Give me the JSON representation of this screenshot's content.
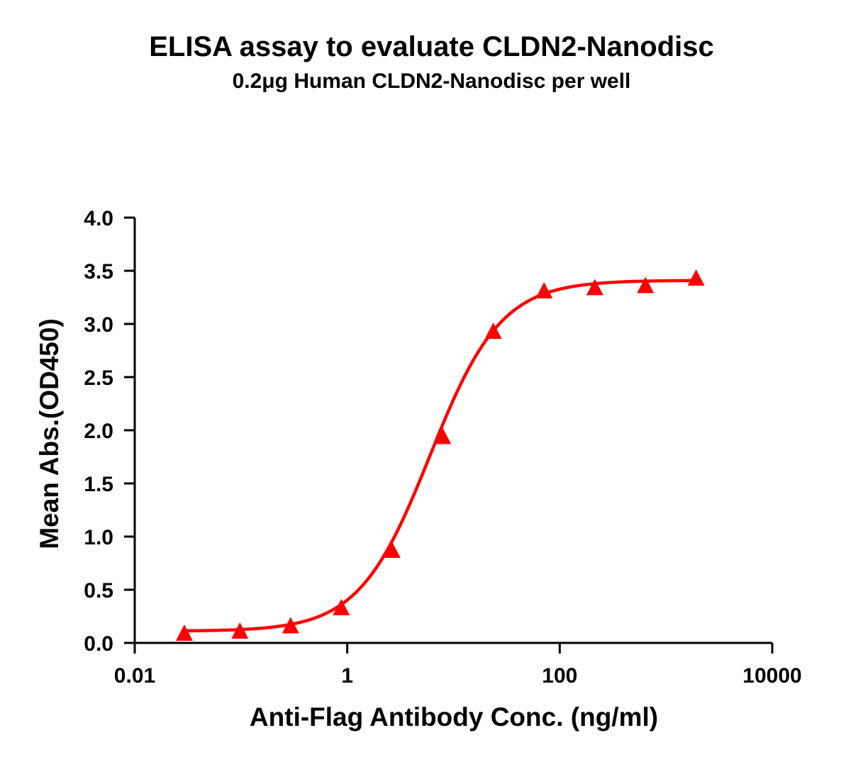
{
  "chart_data": {
    "type": "scatter",
    "title": "ELISA assay to evaluate CLDN2-Nanodisc",
    "subtitle": "0.2μg Human CLDN2-Nanodisc per well",
    "xlabel": "Anti-Flag Antibody Conc. (ng/ml)",
    "ylabel": "Mean Abs.(OD450)",
    "x_scale": "log",
    "xlim": [
      0.01,
      10000
    ],
    "ylim": [
      0,
      4.0
    ],
    "x_ticks": [
      0.01,
      1,
      100,
      10000
    ],
    "x_tick_labels": [
      "0.01",
      "1",
      "100",
      "10000"
    ],
    "y_ticks": [
      0,
      0.5,
      1.0,
      1.5,
      2.0,
      2.5,
      3.0,
      3.5,
      4.0
    ],
    "y_tick_labels": [
      "0.0",
      "0.5",
      "1.0",
      "1.5",
      "2.0",
      "2.5",
      "3.0",
      "3.5",
      "4.0"
    ],
    "grid": false,
    "marker": "triangle",
    "color": "#ff0000",
    "series": [
      {
        "x": [
          0.0293,
          0.0977,
          0.293,
          0.879,
          2.64,
          7.91,
          23.7,
          71.2,
          214,
          641,
          1920
        ],
        "y": [
          0.08,
          0.1,
          0.15,
          0.32,
          0.86,
          1.93,
          2.92,
          3.3,
          3.33,
          3.35,
          3.42
        ]
      }
    ],
    "fit": {
      "type": "4PL",
      "bottom": 0.11,
      "top": 3.41,
      "ec50": 6.0,
      "hill": 1.3
    }
  }
}
